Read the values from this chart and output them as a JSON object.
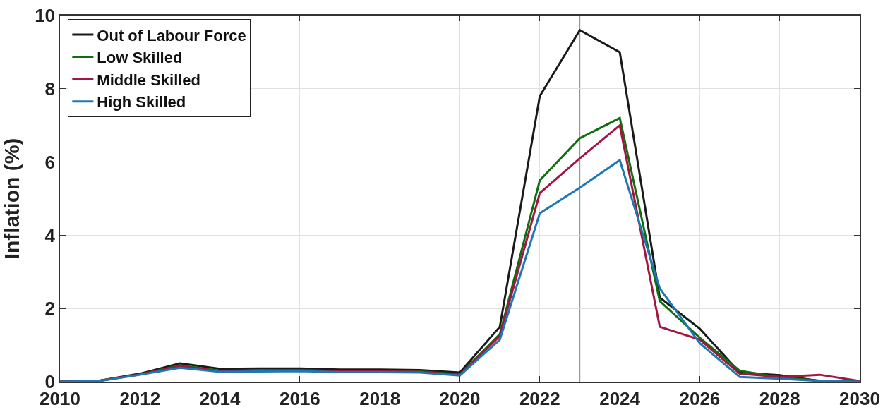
{
  "chart_data": {
    "type": "line",
    "ylabel": "Inflation (%)",
    "x": [
      2010,
      2011,
      2012,
      2013,
      2014,
      2015,
      2016,
      2017,
      2018,
      2019,
      2020,
      2021,
      2022,
      2023,
      2024,
      2025,
      2026,
      2027,
      2028,
      2029,
      2030
    ],
    "series": [
      {
        "name": "Out of Labour Force",
        "color": "#1a1a1a",
        "values": [
          0,
          0.03,
          0.22,
          0.5,
          0.35,
          0.36,
          0.36,
          0.33,
          0.33,
          0.32,
          0.25,
          1.5,
          7.8,
          9.6,
          9.0,
          2.3,
          1.45,
          0.25,
          0.18,
          0.02,
          0
        ]
      },
      {
        "name": "Low Skilled",
        "color": "#0f6e0f",
        "values": [
          0,
          0.03,
          0.2,
          0.45,
          0.3,
          0.31,
          0.32,
          0.29,
          0.29,
          0.28,
          0.2,
          1.3,
          5.5,
          6.65,
          7.2,
          2.2,
          1.2,
          0.3,
          0.12,
          0.03,
          0.02
        ]
      },
      {
        "name": "Middle Skilled",
        "color": "#a2163f",
        "values": [
          0,
          0.03,
          0.2,
          0.42,
          0.29,
          0.3,
          0.31,
          0.28,
          0.28,
          0.27,
          0.19,
          1.25,
          5.15,
          6.1,
          7.0,
          1.5,
          1.15,
          0.22,
          0.13,
          0.19,
          0.02
        ]
      },
      {
        "name": "High Skilled",
        "color": "#1f78b4",
        "values": [
          0,
          0.02,
          0.19,
          0.38,
          0.27,
          0.28,
          0.29,
          0.26,
          0.26,
          0.25,
          0.17,
          1.15,
          4.6,
          5.3,
          6.05,
          2.55,
          1.05,
          0.13,
          0.08,
          0.02,
          0
        ]
      }
    ],
    "xlim": [
      2010,
      2030
    ],
    "xticks": [
      2010,
      2012,
      2014,
      2016,
      2018,
      2020,
      2022,
      2024,
      2026,
      2028,
      2030
    ],
    "ylim": [
      0,
      10
    ],
    "yticks": [
      0,
      2,
      4,
      6,
      8,
      10
    ],
    "ref_lines": [
      {
        "axis": "x",
        "value": 2023,
        "color": "#999999"
      }
    ],
    "grid": true,
    "legend": "top left",
    "line_style": "solid"
  }
}
